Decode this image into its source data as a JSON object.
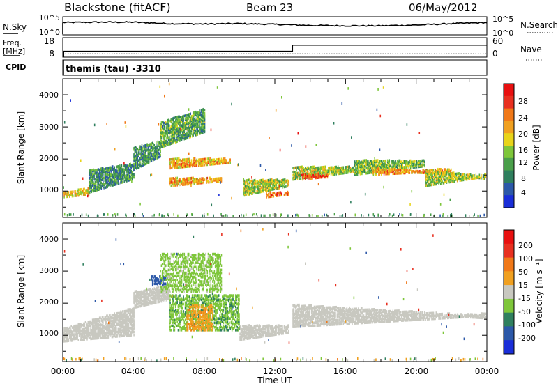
{
  "header": {
    "station": "Blackstone (fitACF)",
    "beam": "Beam 23",
    "date": "06/May/2012"
  },
  "noise_panel": {
    "left_label": "N.Sky",
    "right_label": "N.Search",
    "left_ticks": [
      "10^5",
      "10^0"
    ],
    "right_ticks": [
      "10^5",
      "10^0"
    ]
  },
  "freq_panel": {
    "left_label_1": "Freq.",
    "left_label_2": "[MHz]",
    "right_label": "Nave",
    "left_ticks": [
      "18",
      "8"
    ],
    "right_ticks": [
      "60",
      "0"
    ],
    "freq_mhz": [
      {
        "t": 0,
        "v": 10.2
      },
      {
        "t": 13,
        "v": 10.2
      },
      {
        "t": 13,
        "v": 14.6
      },
      {
        "t": 24,
        "v": 14.6
      }
    ],
    "nave": [
      {
        "t": 0,
        "v": 10
      },
      {
        "t": 24,
        "v": 10
      }
    ]
  },
  "cpid": {
    "label": "CPID",
    "program": "themis (tau) -3310"
  },
  "x_axis": {
    "label": "Time UT",
    "ticks": [
      "00:00",
      "04:00",
      "08:00",
      "12:00",
      "16:00",
      "20:00",
      "00:00"
    ],
    "range_hours": [
      0,
      24
    ]
  },
  "power_panel": {
    "ylabel": "Slant Range [km]",
    "yticks": [
      "1000",
      "2000",
      "3000",
      "4000"
    ],
    "colorbar_label": "Power [dB]",
    "colorbar_ticks": [
      "28",
      "24",
      "20",
      "16",
      "12",
      "8",
      "4"
    ]
  },
  "velocity_panel": {
    "ylabel": "Slant Range [km]",
    "yticks": [
      "1000",
      "2000",
      "3000",
      "4000"
    ],
    "colorbar_label": "Velocity [m s⁻¹]",
    "colorbar_ticks": [
      "200",
      "100",
      "50",
      "15",
      "-15",
      "-50",
      "-100",
      "-200"
    ]
  },
  "colors": {
    "power_scale": [
      "#1a2ed8",
      "#2c58a8",
      "#2f7f5e",
      "#4a9f4a",
      "#7ec63a",
      "#e8d41a",
      "#f0a020",
      "#f07818",
      "#e83020",
      "#e81010"
    ],
    "velocity_scale": [
      "#1a2ed8",
      "#2c58a8",
      "#2f7f5e",
      "#7ec63a",
      "#c8c8c0",
      "#f0a020",
      "#f07818",
      "#e83020",
      "#e81010"
    ],
    "ground_scatter": "#c8c8c0"
  },
  "chart_data": [
    {
      "type": "line",
      "name": "noise",
      "x_unit": "hours UT",
      "sky_noise_log10": [
        {
          "t": 0,
          "v": 3.4
        },
        {
          "t": 2,
          "v": 3.5
        },
        {
          "t": 4,
          "v": 3.5
        },
        {
          "t": 6,
          "v": 3.1
        },
        {
          "t": 8,
          "v": 3.0
        },
        {
          "t": 10,
          "v": 3.1
        },
        {
          "t": 12,
          "v": 2.9
        },
        {
          "t": 14,
          "v": 2.6
        },
        {
          "t": 16,
          "v": 2.5
        },
        {
          "t": 18,
          "v": 2.5
        },
        {
          "t": 20,
          "v": 2.7
        },
        {
          "t": 22,
          "v": 3.1
        },
        {
          "t": 24,
          "v": 3.4
        }
      ],
      "ylim_log10": [
        0,
        5
      ]
    },
    {
      "type": "heatmap",
      "name": "power",
      "x_unit": "hours UT",
      "y_unit": "km",
      "xlim": [
        0,
        24
      ],
      "ylim": [
        180,
        4500
      ],
      "value_range_db": [
        0,
        30
      ],
      "bands": [
        {
          "t0": 0.0,
          "t1": 1.5,
          "r0": 850,
          "r1": 1000,
          "r1b": 1150,
          "v": 18
        },
        {
          "t0": 1.5,
          "t1": 4.0,
          "r0": 1000,
          "r1": 1700,
          "r1b": 1900,
          "v": 8
        },
        {
          "t0": 4.0,
          "t1": 5.5,
          "r0": 1700,
          "r1": 2400,
          "r1b": 2600,
          "v": 8
        },
        {
          "t0": 5.5,
          "t1": 8.0,
          "r0": 2400,
          "r1": 3200,
          "r1b": 3600,
          "v": 10
        },
        {
          "t0": 6.0,
          "t1": 9.5,
          "r0": 1750,
          "r1": 2050,
          "r1b": 2050,
          "v": 20
        },
        {
          "t0": 6.0,
          "t1": 9.0,
          "r0": 1200,
          "r1": 1450,
          "r1b": 1450,
          "v": 20
        },
        {
          "t0": 10.2,
          "t1": 12.8,
          "r0": 900,
          "r1": 1400,
          "r1b": 1400,
          "v": 14
        },
        {
          "t0": 11.5,
          "t1": 12.8,
          "r0": 850,
          "r1": 1000,
          "r1b": 1000,
          "v": 24
        },
        {
          "t0": 13.0,
          "t1": 16.5,
          "r0": 1400,
          "r1": 1800,
          "r1b": 1800,
          "v": 14
        },
        {
          "t0": 13.5,
          "t1": 15.0,
          "r0": 1400,
          "r1": 1550,
          "r1b": 1550,
          "v": 26
        },
        {
          "t0": 16.5,
          "t1": 20.5,
          "r0": 1550,
          "r1": 2000,
          "r1b": 2000,
          "v": 12
        },
        {
          "t0": 17.5,
          "t1": 22.0,
          "r0": 1550,
          "r1": 1750,
          "r1b": 1650,
          "v": 20
        },
        {
          "t0": 20.5,
          "t1": 24.0,
          "r0": 1200,
          "r1": 1700,
          "r1b": 1500,
          "v": 14
        }
      ],
      "near_range_clutter_km": [
        180,
        320
      ]
    },
    {
      "type": "heatmap",
      "name": "velocity",
      "x_unit": "hours UT",
      "y_unit": "km",
      "xlim": [
        0,
        24
      ],
      "ylim": [
        180,
        4500
      ],
      "value_range_ms": [
        -250,
        250
      ],
      "ground_scatter_bands": [
        {
          "t0": 0.0,
          "t1": 4.0,
          "r0": 850,
          "r1": 1250,
          "r1b": 1900
        },
        {
          "t0": 4.0,
          "t1": 6.0,
          "r0": 1900,
          "r1": 2400,
          "r1b": 2600
        },
        {
          "t0": 10.0,
          "t1": 12.8,
          "r0": 900,
          "r1": 1350,
          "r1b": 1350
        },
        {
          "t0": 13.0,
          "t1": 24.0,
          "r0": 1300,
          "r1": 2000,
          "r1b": 1650
        }
      ],
      "ionospheric_bands": [
        {
          "t0": 6.0,
          "t1": 10.0,
          "r0": 1200,
          "r1": 2300,
          "v": 40
        },
        {
          "t0": 7.0,
          "t1": 8.5,
          "r0": 1200,
          "r1": 2000,
          "v": -35
        },
        {
          "t0": 5.5,
          "t1": 9.0,
          "r0": 2400,
          "r1": 3600,
          "v": 30
        },
        {
          "t0": 5.0,
          "t1": 5.8,
          "r0": 2600,
          "r1": 2900,
          "v": 180
        }
      ]
    }
  ]
}
